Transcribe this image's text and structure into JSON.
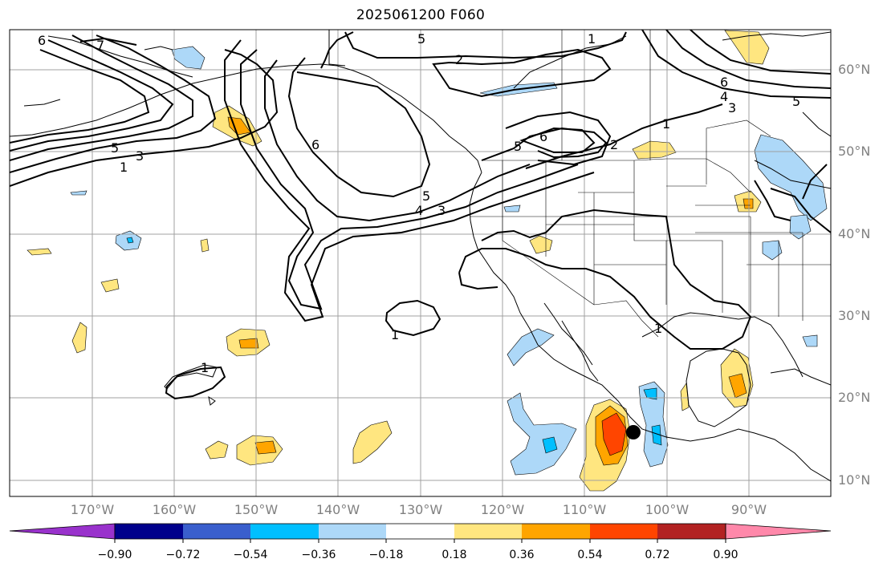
{
  "title": "2025061200 F060",
  "lat_labels": [
    "60°N",
    "50°N",
    "40°N",
    "30°N",
    "20°N",
    "10°N"
  ],
  "lon_labels": [
    "170°W",
    "160°W",
    "150°W",
    "140°W",
    "130°W",
    "120°W",
    "110°W",
    "100°W",
    "90°W"
  ],
  "colorbar": {
    "ticks": [
      "−0.90",
      "−0.72",
      "−0.54",
      "−0.36",
      "−0.18",
      "0.18",
      "0.36",
      "0.54",
      "0.72",
      "0.90"
    ],
    "colors": [
      "#9932cc",
      "#00008b",
      "#3a5fcd",
      "#00bfff",
      "#add8f8",
      "#ffffff",
      "#ffe680",
      "#ffa500",
      "#ff4500",
      "#b22222",
      "#ff88aa"
    ]
  },
  "contour_labels": [
    "6",
    "5",
    "2",
    "1",
    "7",
    "5",
    "3",
    "1",
    "6",
    "5",
    "4",
    "3",
    "5",
    "6",
    "2",
    "1",
    "1",
    "6",
    "4",
    "3",
    "5",
    "1"
  ],
  "colors": {
    "contour": "#000000",
    "grid": "#a0a0a0",
    "coast": "#000000"
  }
}
